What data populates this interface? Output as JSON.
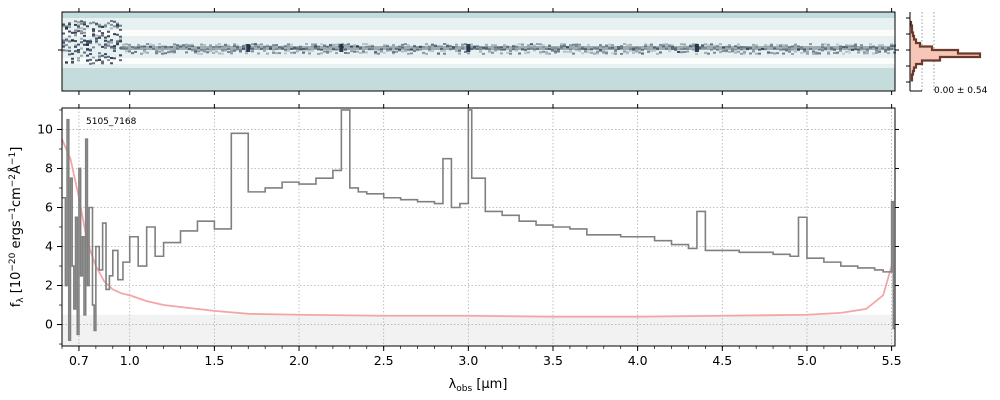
{
  "chart_data": {
    "type": "line",
    "object_id": "5105_7168",
    "xlabel_main": "λ",
    "xlabel_sub": "obs",
    "xlabel_unit": " [μm]",
    "ylabel": "f_λ [10^-20 ergs^-1cm^-2Å^-1]",
    "ylabel_parts": {
      "prefix": "f",
      "sub": "λ",
      "mid": " [10",
      "sup1": "−20",
      "mid2": " ergs",
      "sup2": "−1",
      "mid3": "cm",
      "sup3": "−2",
      "mid4": "Å",
      "sup4": "−1",
      "end": "]"
    },
    "xlim": [
      0.6,
      5.52
    ],
    "ylim": [
      -1.1,
      11.1
    ],
    "x_ticks": [
      {
        "value": 0.7,
        "label": "0.7"
      },
      {
        "value": 1.0,
        "label": "1.0"
      },
      {
        "value": 1.5,
        "label": "1.5"
      },
      {
        "value": 2.0,
        "label": "2.0"
      },
      {
        "value": 2.5,
        "label": "2.5"
      },
      {
        "value": 3.0,
        "label": "3.0"
      },
      {
        "value": 3.5,
        "label": "3.5"
      },
      {
        "value": 4.0,
        "label": "4.0"
      },
      {
        "value": 4.5,
        "label": "4.5"
      },
      {
        "value": 5.0,
        "label": "5.0"
      },
      {
        "value": 5.5,
        "label": "5.5"
      }
    ],
    "y_ticks": [
      {
        "value": 0,
        "label": "0"
      },
      {
        "value": 2,
        "label": "2"
      },
      {
        "value": 4,
        "label": "4"
      },
      {
        "value": 6,
        "label": "6"
      },
      {
        "value": 8,
        "label": "8"
      },
      {
        "value": 10,
        "label": "10"
      }
    ],
    "grid": true,
    "series": [
      {
        "color": "#808080",
        "style": "steps",
        "points": [
          [
            0.6,
            6.5
          ],
          [
            0.62,
            2.0
          ],
          [
            0.63,
            10.5
          ],
          [
            0.64,
            -0.8
          ],
          [
            0.65,
            7.5
          ],
          [
            0.66,
            3.0
          ],
          [
            0.67,
            0.8
          ],
          [
            0.68,
            5.5
          ],
          [
            0.69,
            -0.5
          ],
          [
            0.7,
            8.0
          ],
          [
            0.71,
            2.5
          ],
          [
            0.72,
            4.5
          ],
          [
            0.73,
            0.5
          ],
          [
            0.74,
            9.5
          ],
          [
            0.75,
            2.0
          ],
          [
            0.76,
            6.0
          ],
          [
            0.78,
            1.0
          ],
          [
            0.79,
            -0.3
          ],
          [
            0.8,
            4.0
          ],
          [
            0.82,
            2.8
          ],
          [
            0.84,
            5.2
          ],
          [
            0.86,
            1.8
          ],
          [
            0.88,
            2.5
          ],
          [
            0.9,
            3.8
          ],
          [
            0.93,
            2.3
          ],
          [
            0.96,
            3.2
          ],
          [
            1.0,
            4.5
          ],
          [
            1.05,
            3.0
          ],
          [
            1.1,
            5.0
          ],
          [
            1.15,
            3.5
          ],
          [
            1.2,
            4.2
          ],
          [
            1.3,
            4.8
          ],
          [
            1.4,
            5.3
          ],
          [
            1.5,
            4.9
          ],
          [
            1.6,
            9.8
          ],
          [
            1.7,
            6.8
          ],
          [
            1.8,
            7.0
          ],
          [
            1.9,
            7.3
          ],
          [
            2.0,
            7.2
          ],
          [
            2.1,
            7.5
          ],
          [
            2.2,
            7.9
          ],
          [
            2.25,
            11.0
          ],
          [
            2.3,
            7.0
          ],
          [
            2.35,
            6.8
          ],
          [
            2.4,
            6.7
          ],
          [
            2.5,
            6.5
          ],
          [
            2.6,
            6.4
          ],
          [
            2.7,
            6.3
          ],
          [
            2.8,
            6.2
          ],
          [
            2.85,
            8.5
          ],
          [
            2.9,
            6.0
          ],
          [
            2.95,
            6.2
          ],
          [
            3.0,
            11.0
          ],
          [
            3.02,
            7.5
          ],
          [
            3.1,
            5.8
          ],
          [
            3.2,
            5.6
          ],
          [
            3.3,
            5.3
          ],
          [
            3.4,
            5.1
          ],
          [
            3.5,
            5.0
          ],
          [
            3.6,
            4.9
          ],
          [
            3.7,
            4.6
          ],
          [
            3.8,
            4.6
          ],
          [
            3.9,
            4.5
          ],
          [
            4.0,
            4.5
          ],
          [
            4.1,
            4.3
          ],
          [
            4.2,
            4.1
          ],
          [
            4.3,
            3.9
          ],
          [
            4.35,
            5.8
          ],
          [
            4.4,
            3.8
          ],
          [
            4.5,
            3.8
          ],
          [
            4.6,
            3.7
          ],
          [
            4.7,
            3.7
          ],
          [
            4.8,
            3.6
          ],
          [
            4.9,
            3.5
          ],
          [
            4.95,
            5.5
          ],
          [
            5.0,
            3.4
          ],
          [
            5.1,
            3.2
          ],
          [
            5.2,
            3.0
          ],
          [
            5.3,
            2.9
          ],
          [
            5.4,
            2.8
          ],
          [
            5.45,
            2.7
          ],
          [
            5.5,
            6.3
          ],
          [
            5.51,
            -0.2
          ]
        ]
      },
      {
        "color": "#f4a6a6",
        "style": "line",
        "points": [
          [
            0.6,
            9.5
          ],
          [
            0.65,
            8.5
          ],
          [
            0.7,
            6.5
          ],
          [
            0.75,
            4.2
          ],
          [
            0.8,
            3.0
          ],
          [
            0.85,
            2.2
          ],
          [
            0.9,
            1.8
          ],
          [
            0.95,
            1.6
          ],
          [
            1.0,
            1.5
          ],
          [
            1.1,
            1.2
          ],
          [
            1.2,
            1.0
          ],
          [
            1.3,
            0.9
          ],
          [
            1.5,
            0.7
          ],
          [
            1.7,
            0.55
          ],
          [
            2.0,
            0.5
          ],
          [
            2.5,
            0.45
          ],
          [
            3.0,
            0.45
          ],
          [
            3.5,
            0.4
          ],
          [
            4.0,
            0.4
          ],
          [
            4.5,
            0.45
          ],
          [
            5.0,
            0.5
          ],
          [
            5.2,
            0.6
          ],
          [
            5.35,
            0.8
          ],
          [
            5.45,
            1.5
          ],
          [
            5.5,
            3.0
          ]
        ]
      }
    ],
    "spectrum_2d": {
      "background": "#c4dcdc",
      "trace_color": "#1b2b40"
    },
    "side_panel": {
      "label": "0.00 ± 0.54",
      "hist_color": "#6b3a2b",
      "fill_color": "#f6c7b8"
    }
  }
}
